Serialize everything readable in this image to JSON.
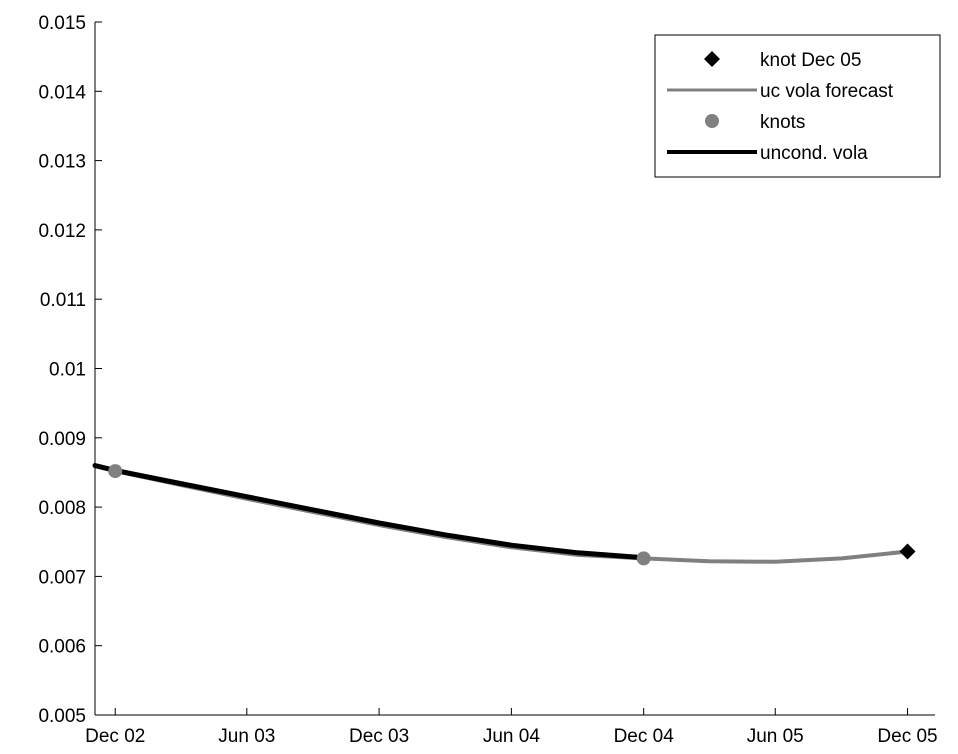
{
  "chart_data": {
    "type": "line",
    "title": "",
    "xlabel": "",
    "ylabel": "",
    "xlim": [
      "2002-11-17",
      "2006-01-22"
    ],
    "ylim": [
      0.005,
      0.015
    ],
    "grid": false,
    "legend_placement": "top-right",
    "x_tick_labels": [
      "Dec 02",
      "Jun 03",
      "Dec 03",
      "Jun 04",
      "Dec 04",
      "Jun 05",
      "Dec 05"
    ],
    "x_ticks": [
      "2002-12-15",
      "2003-06-15",
      "2003-12-15",
      "2004-06-15",
      "2004-12-15",
      "2005-06-15",
      "2005-12-15"
    ],
    "y_tick_labels": [
      "0.005",
      "0.006",
      "0.007",
      "0.008",
      "0.009",
      "0.01",
      "0.011",
      "0.012",
      "0.013",
      "0.014",
      "0.015"
    ],
    "y_ticks": [
      0.005,
      0.006,
      0.007,
      0.008,
      0.009,
      0.01,
      0.011,
      0.012,
      0.013,
      0.014,
      0.015
    ],
    "series": [
      {
        "name": "uc vola forecast",
        "kind": "line",
        "color": "#808080",
        "points": [
          [
            "2002-11-17",
            0.00859
          ],
          [
            "2002-12-15",
            0.00852
          ],
          [
            "2003-03-15",
            0.00832
          ],
          [
            "2003-06-15",
            0.00812
          ],
          [
            "2003-09-15",
            0.00793
          ],
          [
            "2003-12-15",
            0.00774
          ],
          [
            "2004-03-15",
            0.00757
          ],
          [
            "2004-06-15",
            0.00742
          ],
          [
            "2004-09-15",
            0.00731
          ],
          [
            "2004-12-15",
            0.00726
          ],
          [
            "2005-03-15",
            0.00722
          ],
          [
            "2005-06-15",
            0.00721
          ],
          [
            "2005-09-15",
            0.00726
          ],
          [
            "2005-12-15",
            0.00736
          ]
        ]
      },
      {
        "name": "unconditional vola",
        "kind": "line",
        "color": "#000000",
        "points": [
          [
            "2002-11-17",
            0.0086
          ],
          [
            "2002-12-15",
            0.00853
          ],
          [
            "2003-03-15",
            0.00834
          ],
          [
            "2003-06-15",
            0.00815
          ],
          [
            "2003-09-15",
            0.00796
          ],
          [
            "2003-12-15",
            0.00777
          ],
          [
            "2004-03-15",
            0.0076
          ],
          [
            "2004-06-15",
            0.00745
          ],
          [
            "2004-09-15",
            0.00734
          ],
          [
            "2004-12-15",
            0.00727
          ]
        ]
      },
      {
        "name": "knots",
        "kind": "marker",
        "marker": "circle",
        "color": "#808080",
        "points": [
          [
            "2002-12-15",
            0.00852
          ],
          [
            "2004-12-15",
            0.00726
          ]
        ]
      },
      {
        "name": "knot Dec 05",
        "kind": "marker",
        "marker": "diamond",
        "color": "#000000",
        "points": [
          [
            "2005-12-15",
            0.00736
          ]
        ]
      }
    ],
    "legend": [
      {
        "label": "knot Dec 05",
        "symbol": "diamond",
        "color": "#000000"
      },
      {
        "label": "uc vola forecast",
        "symbol": "line",
        "color": "#808080"
      },
      {
        "label": "knots",
        "symbol": "circle",
        "color": "#808080"
      },
      {
        "label": "uncond. vola",
        "symbol": "line",
        "color": "#000000"
      }
    ]
  }
}
